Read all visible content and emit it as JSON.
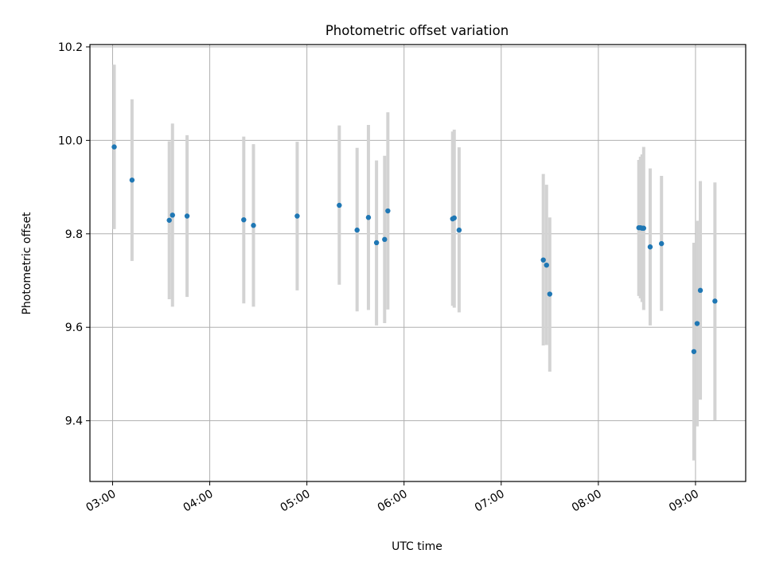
{
  "chart_data": {
    "type": "scatter",
    "title": "Photometric offset variation",
    "xlabel": "UTC time",
    "ylabel": "Photometric offset",
    "xlim": [
      "02:46",
      "09:31"
    ],
    "ylim": [
      9.27,
      10.205
    ],
    "x_ticks": [
      "03:00",
      "04:00",
      "05:00",
      "06:00",
      "07:00",
      "08:00",
      "09:00"
    ],
    "y_ticks": [
      "9.4",
      "9.6",
      "9.8",
      "10.0",
      "10.2"
    ],
    "grid": true,
    "marker_color": "#1f77b4",
    "errorbar_color": "#d3d3d3",
    "points": [
      {
        "x": "03:01",
        "y": 9.986,
        "low": 9.81,
        "high": 10.162
      },
      {
        "x": "03:12",
        "y": 9.915,
        "low": 9.742,
        "high": 10.088
      },
      {
        "x": "03:35",
        "y": 9.829,
        "low": 9.66,
        "high": 9.998
      },
      {
        "x": "03:37",
        "y": 9.84,
        "low": 9.644,
        "high": 10.036
      },
      {
        "x": "03:46",
        "y": 9.838,
        "low": 9.665,
        "high": 10.011
      },
      {
        "x": "04:21",
        "y": 9.83,
        "low": 9.651,
        "high": 10.008
      },
      {
        "x": "04:27",
        "y": 9.818,
        "low": 9.644,
        "high": 9.992
      },
      {
        "x": "04:54",
        "y": 9.838,
        "low": 9.679,
        "high": 9.997
      },
      {
        "x": "05:20",
        "y": 9.861,
        "low": 9.691,
        "high": 10.032
      },
      {
        "x": "05:31",
        "y": 9.808,
        "low": 9.634,
        "high": 9.984
      },
      {
        "x": "05:38",
        "y": 9.835,
        "low": 9.637,
        "high": 10.033
      },
      {
        "x": "05:43",
        "y": 9.781,
        "low": 9.604,
        "high": 9.957
      },
      {
        "x": "05:48",
        "y": 9.788,
        "low": 9.609,
        "high": 9.967
      },
      {
        "x": "05:50",
        "y": 9.849,
        "low": 9.638,
        "high": 10.06
      },
      {
        "x": "06:30",
        "y": 9.832,
        "low": 9.646,
        "high": 10.019
      },
      {
        "x": "06:31",
        "y": 9.834,
        "low": 9.642,
        "high": 10.023
      },
      {
        "x": "06:34",
        "y": 9.808,
        "low": 9.632,
        "high": 9.985
      },
      {
        "x": "07:26",
        "y": 9.744,
        "low": 9.561,
        "high": 9.928
      },
      {
        "x": "07:28",
        "y": 9.733,
        "low": 9.562,
        "high": 9.905
      },
      {
        "x": "07:30",
        "y": 9.671,
        "low": 9.505,
        "high": 9.835
      },
      {
        "x": "08:25",
        "y": 9.813,
        "low": 9.667,
        "high": 9.958
      },
      {
        "x": "08:26",
        "y": 9.813,
        "low": 9.662,
        "high": 9.965
      },
      {
        "x": "08:27",
        "y": 9.812,
        "low": 9.654,
        "high": 9.97
      },
      {
        "x": "08:28",
        "y": 9.812,
        "low": 9.637,
        "high": 9.986
      },
      {
        "x": "08:32",
        "y": 9.772,
        "low": 9.604,
        "high": 9.94
      },
      {
        "x": "08:39",
        "y": 9.779,
        "low": 9.635,
        "high": 9.924
      },
      {
        "x": "08:59",
        "y": 9.548,
        "low": 9.315,
        "high": 9.781
      },
      {
        "x": "09:01",
        "y": 9.608,
        "low": 9.388,
        "high": 9.828
      },
      {
        "x": "09:03",
        "y": 9.679,
        "low": 9.445,
        "high": 9.913
      },
      {
        "x": "09:12",
        "y": 9.656,
        "low": 9.401,
        "high": 9.91
      }
    ]
  }
}
